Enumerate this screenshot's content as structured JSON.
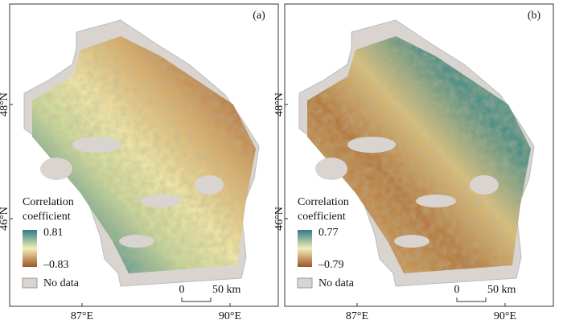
{
  "panels": [
    {
      "label": "(a)",
      "lat_labels": [
        "48°N",
        "46°N"
      ],
      "lon_labels": [
        "87°E",
        "90°E"
      ],
      "legend": {
        "title": [
          "Correlation",
          "coefficient"
        ],
        "max": "0.81",
        "min": "–0.83",
        "no_data": "No data"
      },
      "scale": {
        "start": "0",
        "end": "50 km"
      }
    },
    {
      "label": "(b)",
      "lat_labels": [
        "48°N",
        "46°N"
      ],
      "lon_labels": [
        "87°E",
        "90°E"
      ],
      "legend": {
        "title": [
          "Correlation",
          "coefficient"
        ],
        "max": "0.77",
        "min": "–0.79",
        "no_data": "No data"
      },
      "scale": {
        "start": "0",
        "end": "50 km"
      }
    }
  ]
}
